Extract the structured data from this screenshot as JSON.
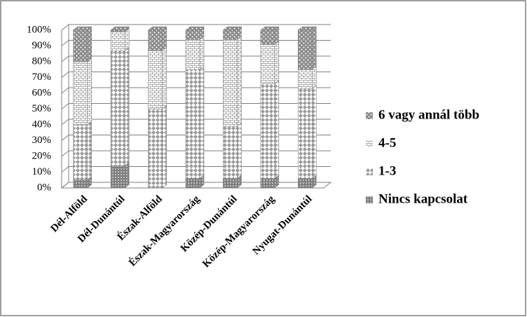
{
  "chart_data": {
    "type": "stacked_bar_3d",
    "categories": [
      "Dél-Alföld",
      "Dél-Dunántúl",
      "Észak-Alföld",
      "Észak-Magyarország",
      "Közép-Dunántúl",
      "Közép-Magyarország",
      "Nyugat-Dunántúl"
    ],
    "series": [
      {
        "name": "Nincs kapcsolat",
        "color": "#7f7f7f",
        "values": [
          5,
          14,
          0,
          6,
          6,
          6,
          6
        ]
      },
      {
        "name": "1-3",
        "color": "#9a9a9a",
        "values": [
          35,
          73,
          50,
          69,
          33,
          60,
          57
        ]
      },
      {
        "name": "4-5",
        "color": "#b0b0b0",
        "values": [
          40,
          12,
          37,
          19,
          55,
          25,
          12
        ]
      },
      {
        "name": "6 vagy annál több",
        "color": "#8c8c8c",
        "values": [
          20,
          1,
          13,
          6,
          6,
          9,
          25
        ]
      }
    ],
    "ylim": [
      0,
      100
    ],
    "yticks": [
      {
        "value": 0,
        "label": "0%"
      },
      {
        "value": 10,
        "label": "10%"
      },
      {
        "value": 20,
        "label": "20%"
      },
      {
        "value": 30,
        "label": "30%"
      },
      {
        "value": 40,
        "label": "40%"
      },
      {
        "value": 50,
        "label": "50%"
      },
      {
        "value": 60,
        "label": "60%"
      },
      {
        "value": 70,
        "label": "70%"
      },
      {
        "value": 80,
        "label": "80%"
      },
      {
        "value": 90,
        "label": "90%"
      },
      {
        "value": 100,
        "label": "100%"
      }
    ],
    "grid": true,
    "legend": "right"
  }
}
